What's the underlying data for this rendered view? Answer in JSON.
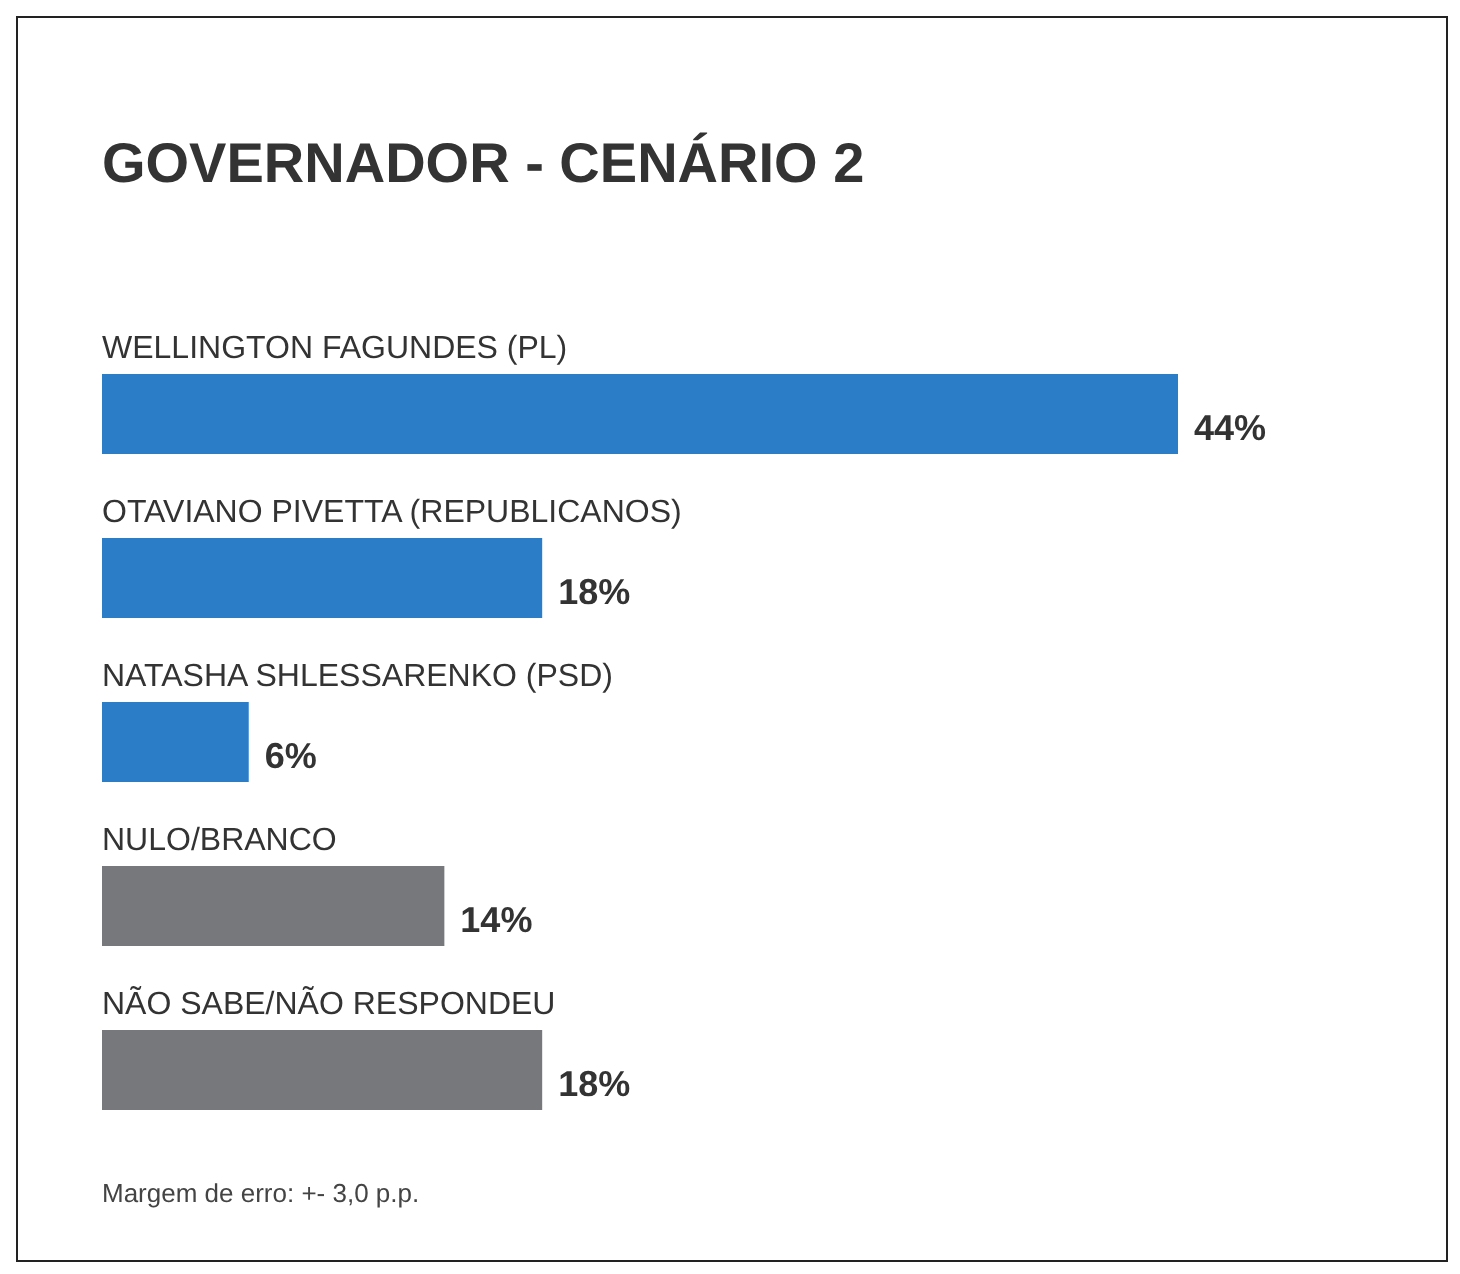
{
  "chart_data": {
    "type": "bar",
    "orientation": "horizontal",
    "title": "GOVERNADOR - CENÁRIO 2",
    "categories": [
      "WELLINGTON FAGUNDES (PL)",
      "OTAVIANO PIVETTA (REPUBLICANOS)",
      "NATASHA SHLESSARENKO (PSD)",
      "NULO/BRANCO",
      "NÃO SABE/NÃO RESPONDEU"
    ],
    "values": [
      44,
      18,
      6,
      14,
      18
    ],
    "colors": [
      "#2a7dc6",
      "#2a7dc6",
      "#2a7dc6",
      "#77787b",
      "#77787b"
    ],
    "value_labels": [
      "44%",
      "18%",
      "6%",
      "14%",
      "18%"
    ],
    "annotations": [
      "Margem de erro: +- 3,0 p.p."
    ]
  }
}
